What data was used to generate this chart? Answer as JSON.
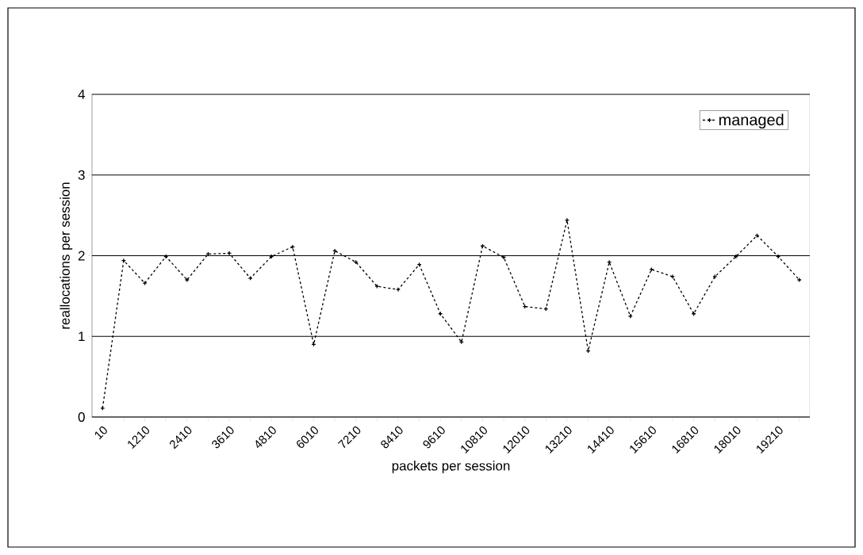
{
  "chart_data": {
    "type": "line",
    "xlabel": "packets per session",
    "ylabel": "reallocations per session",
    "categories": [
      "10",
      null,
      "1210",
      null,
      "2410",
      null,
      "3610",
      null,
      "4810",
      null,
      "6010",
      null,
      "7210",
      null,
      "8410",
      null,
      "9610",
      null,
      "10810",
      null,
      "12010",
      null,
      "13210",
      null,
      "14410",
      null,
      "15610",
      null,
      "16810",
      null,
      "18010",
      null,
      "19210",
      null
    ],
    "series": [
      {
        "name": "managed",
        "color": "#000000",
        "values": [
          0.11,
          1.94,
          1.66,
          1.99,
          1.7,
          2.02,
          2.03,
          1.72,
          1.99,
          2.11,
          0.9,
          2.06,
          1.92,
          1.62,
          1.58,
          1.89,
          1.28,
          0.93,
          2.12,
          1.98,
          1.37,
          1.34,
          2.44,
          0.82,
          1.92,
          1.25,
          1.83,
          1.74,
          1.28,
          1.74,
          1.99,
          2.25,
          1.99,
          1.7
        ]
      }
    ],
    "ylim": [
      0,
      4
    ],
    "yticks": [
      0,
      1,
      2,
      3,
      4
    ],
    "grid": "y",
    "legend": "top right",
    "marker": "cross",
    "line_style": "dashed"
  }
}
